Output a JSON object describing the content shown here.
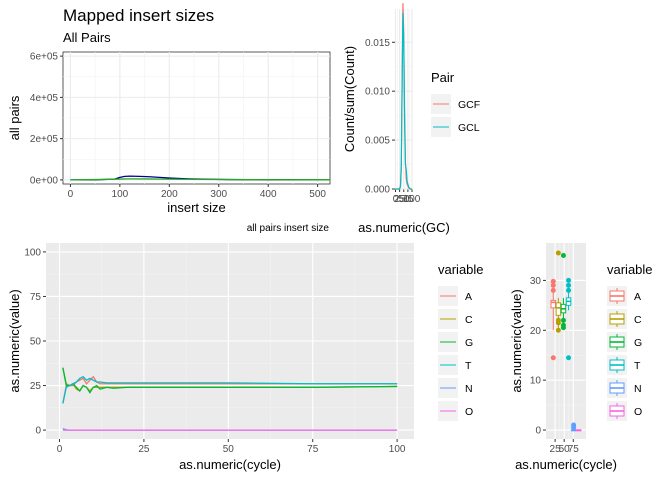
{
  "chart_data": [
    {
      "type": "line",
      "title": "Mapped insert sizes",
      "subtitle": "All Pairs",
      "xlabel": "insert size",
      "ylabel": "all pairs",
      "caption": "all pairs insert size",
      "xlim": [
        -15,
        525
      ],
      "ylim": [
        -20000,
        620000
      ],
      "x_ticks": [
        0,
        100,
        200,
        300,
        400,
        500
      ],
      "y_ticks": [
        0,
        200000,
        400000,
        600000
      ],
      "x_tick_labels": [
        "0",
        "100",
        "200",
        "300",
        "400",
        "500"
      ],
      "y_tick_labels": [
        "0e+00",
        "2e+05",
        "4e+05",
        "6e+05"
      ],
      "grid": true,
      "background": "white",
      "series": [
        {
          "color": "#00008b",
          "x": [
            0,
            50,
            90,
            100,
            110,
            120,
            140,
            160,
            180,
            200,
            240,
            280,
            320,
            360,
            400,
            450,
            525
          ],
          "y": [
            0,
            0,
            4000,
            12000,
            17000,
            18000,
            17000,
            15000,
            12000,
            9000,
            5000,
            3000,
            1500,
            800,
            400,
            200,
            100
          ]
        },
        {
          "color": "#22aa22",
          "x": [
            0,
            50,
            100,
            120,
            150,
            200,
            250,
            300,
            350,
            400,
            525
          ],
          "y": [
            0,
            1500,
            4000,
            5000,
            4500,
            3500,
            2500,
            1800,
            1000,
            600,
            200
          ]
        }
      ]
    },
    {
      "type": "line",
      "xlabel": "as.numeric(GC)",
      "ylabel": "Count/sum(Count)",
      "xlim": [
        -3,
        106
      ],
      "ylim": [
        0,
        0.0184
      ],
      "x_ticks": [
        0,
        25,
        50,
        75,
        100
      ],
      "y_ticks": [
        0,
        0.005,
        0.01,
        0.015
      ],
      "x_tick_labels": [
        "0",
        "25",
        "50",
        "75",
        "100"
      ],
      "y_tick_labels": [
        "0.000",
        "0.005",
        "0.010",
        "0.015"
      ],
      "legend": {
        "title": "Pair",
        "placement": "right",
        "entries": [
          "GCF",
          "GCL"
        ]
      },
      "series": [
        {
          "name": "GCF",
          "color": "#F8766D",
          "x": [
            0,
            25,
            30,
            35,
            40,
            45,
            50,
            55,
            60,
            65,
            70,
            80,
            90,
            100
          ],
          "y": [
            0,
            0,
            0.0002,
            0.002,
            0.01,
            0.019,
            0.016,
            0.008,
            0.003,
            0.001,
            0.0005,
            0.0001,
            0,
            0
          ]
        },
        {
          "name": "GCL",
          "color": "#00BFC4",
          "x": [
            0,
            25,
            30,
            35,
            40,
            45,
            50,
            55,
            60,
            65,
            70,
            80,
            90,
            100
          ],
          "y": [
            0,
            0,
            0.0003,
            0.0025,
            0.011,
            0.018,
            0.015,
            0.007,
            0.0025,
            0.002,
            0.0008,
            0.0002,
            0,
            0
          ]
        }
      ]
    },
    {
      "type": "line",
      "xlabel": "as.numeric(cycle)",
      "ylabel": "as.numeric(value)",
      "xlim": [
        -4,
        105
      ],
      "ylim": [
        -5,
        105
      ],
      "x_ticks": [
        0,
        25,
        50,
        75,
        100
      ],
      "y_ticks": [
        0,
        25,
        50,
        75,
        100
      ],
      "x_tick_labels": [
        "0",
        "25",
        "50",
        "75",
        "100"
      ],
      "y_tick_labels": [
        "0",
        "25",
        "50",
        "75",
        "100"
      ],
      "legend": {
        "title": "variable",
        "placement": "right",
        "entries": [
          "A",
          "C",
          "G",
          "T",
          "N",
          "O"
        ]
      },
      "series": [
        {
          "name": "A",
          "color": "#F8766D",
          "x": [
            1,
            2,
            3,
            4,
            5,
            6,
            7,
            8,
            9,
            10,
            11,
            12,
            14,
            16,
            20,
            30,
            50,
            75,
            100
          ],
          "y": [
            15,
            25,
            25,
            25,
            27,
            28,
            29,
            26,
            28,
            30,
            27,
            26,
            26,
            26,
            26,
            26,
            26,
            26,
            26
          ]
        },
        {
          "name": "C",
          "color": "#B79F00",
          "x": [
            1,
            2,
            3,
            4,
            5,
            6,
            7,
            8,
            9,
            10,
            11,
            12,
            14,
            16,
            20,
            30,
            50,
            75,
            100
          ],
          "y": [
            35,
            26,
            25,
            26,
            23,
            22,
            25,
            24,
            22,
            24,
            24,
            24,
            24,
            24,
            24,
            24,
            24,
            24,
            24.5
          ]
        },
        {
          "name": "G",
          "color": "#00BA38",
          "x": [
            1,
            2,
            3,
            4,
            5,
            6,
            7,
            8,
            9,
            10,
            11,
            12,
            14,
            16,
            20,
            30,
            50,
            75,
            100
          ],
          "y": [
            35,
            25,
            25,
            26,
            24,
            22,
            25,
            24,
            21,
            24,
            25,
            23,
            24,
            23.5,
            24,
            24,
            24,
            24,
            24.5
          ]
        },
        {
          "name": "T",
          "color": "#00BFC4",
          "x": [
            1,
            2,
            3,
            4,
            5,
            6,
            7,
            8,
            9,
            10,
            11,
            12,
            14,
            16,
            20,
            30,
            50,
            75,
            100
          ],
          "y": [
            15,
            24,
            25,
            26,
            27,
            29,
            30,
            28,
            29,
            28,
            27,
            27,
            26.5,
            26.5,
            26.5,
            26.5,
            26.5,
            26,
            26
          ]
        },
        {
          "name": "N",
          "color": "#619CFF",
          "x": [
            1,
            2,
            3,
            100
          ],
          "y": [
            0.8,
            0.2,
            0,
            0
          ]
        },
        {
          "name": "O",
          "color": "#F564E3",
          "x": [
            1,
            2,
            100
          ],
          "y": [
            0,
            0,
            0
          ]
        }
      ]
    },
    {
      "type": "box",
      "xlabel": "as.numeric(cycle)",
      "ylabel": "as.numeric(value)",
      "xlim": [
        0,
        110
      ],
      "ylim": [
        -1.8,
        37.5
      ],
      "x_ticks": [
        25,
        50,
        75
      ],
      "y_ticks": [
        0,
        10,
        20,
        30
      ],
      "x_tick_labels": [
        "25",
        "50",
        "75"
      ],
      "y_tick_labels": [
        "0",
        "10",
        "20",
        "30"
      ],
      "legend": {
        "title": "variable",
        "placement": "right",
        "entries": [
          "A",
          "C",
          "G",
          "T",
          "N",
          "O"
        ]
      },
      "boxes": [
        {
          "name": "A",
          "color": "#F8766D",
          "x": 20,
          "q1": 24.5,
          "median": 25.6,
          "q3": 26,
          "low": 20,
          "high": 29.5,
          "outliers": [
            14.5,
            28,
            29,
            29.8
          ]
        },
        {
          "name": "C",
          "color": "#B79F00",
          "x": 34,
          "q1": 23,
          "median": 24.5,
          "q3": 25.5,
          "low": 20.5,
          "high": 26.5,
          "outliers": [
            35.5,
            21.5,
            22,
            20
          ]
        },
        {
          "name": "G",
          "color": "#00BA38",
          "x": 48,
          "q1": 23.5,
          "median": 24.3,
          "q3": 25.2,
          "low": 21,
          "high": 26.5,
          "outliers": [
            35,
            21,
            20.5,
            22
          ]
        },
        {
          "name": "T",
          "color": "#00BFC4",
          "x": 62,
          "q1": 25,
          "median": 25.8,
          "q3": 26.5,
          "low": 24,
          "high": 28.5,
          "outliers": [
            14.5,
            29,
            30,
            28
          ]
        },
        {
          "name": "N",
          "color": "#619CFF",
          "x": 76,
          "q1": 0,
          "median": 0,
          "q3": 0,
          "low": 0,
          "high": 0,
          "outliers": [
            1,
            0.5
          ]
        },
        {
          "name": "O",
          "color": "#F564E3",
          "x": 90,
          "q1": 0,
          "median": 0,
          "q3": 0,
          "low": 0,
          "high": 0,
          "outliers": []
        }
      ]
    }
  ]
}
